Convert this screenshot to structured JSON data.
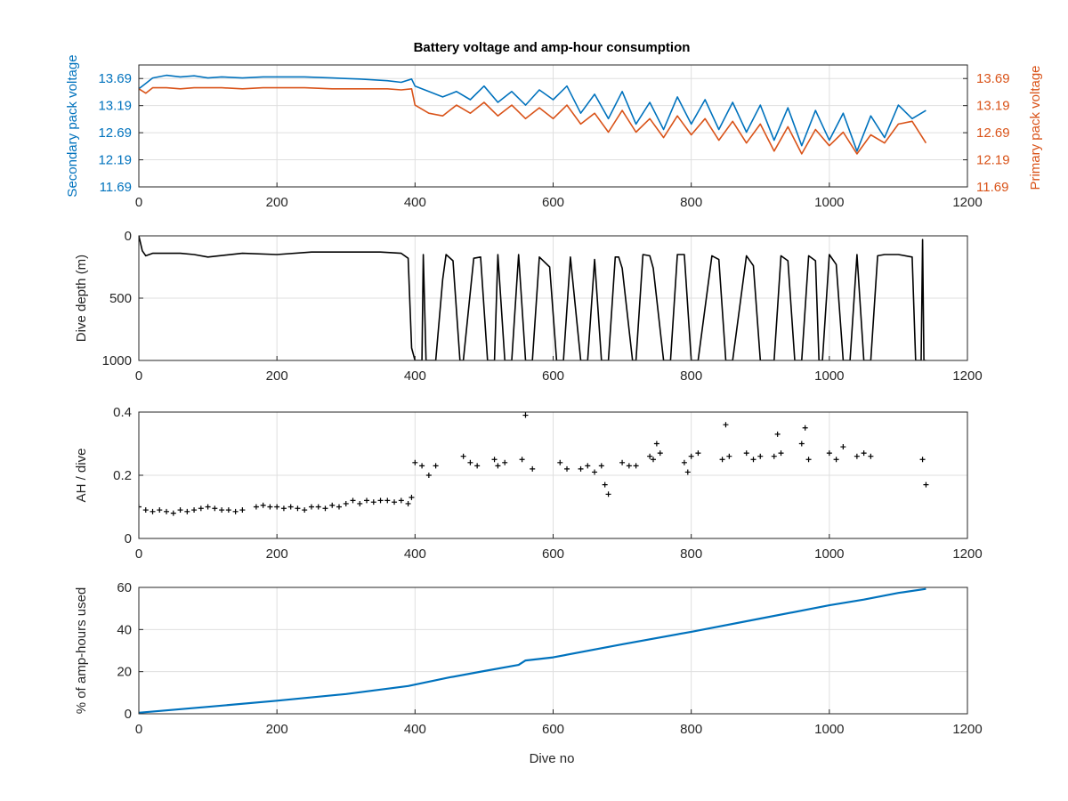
{
  "figure": {
    "title": "Battery voltage and amp-hour consumption",
    "xlabel": "Dive no",
    "colors": {
      "secondary": "#0072bd",
      "primary": "#d95319",
      "black": "#000000"
    }
  },
  "chart_data": [
    {
      "type": "line",
      "title": "Battery voltage and amp-hour consumption",
      "xlabel": "",
      "ylabel_left": "Secondary pack voltage",
      "ylabel_right": "Primary pack voltage",
      "xlim": [
        0,
        1200
      ],
      "ylim": [
        11.69,
        13.94
      ],
      "xticks": [
        0,
        200,
        400,
        600,
        800,
        1000,
        1200
      ],
      "yticks": [
        11.69,
        12.19,
        12.69,
        13.19,
        13.69
      ],
      "grid": true,
      "series": [
        {
          "name": "Secondary pack voltage",
          "axis": "left",
          "color": "#0072bd",
          "x": [
            0,
            10,
            20,
            40,
            60,
            80,
            100,
            120,
            150,
            180,
            200,
            240,
            280,
            320,
            360,
            380,
            395,
            400,
            420,
            440,
            460,
            480,
            500,
            520,
            540,
            560,
            580,
            600,
            620,
            640,
            660,
            680,
            700,
            720,
            740,
            760,
            780,
            800,
            820,
            840,
            860,
            880,
            900,
            920,
            940,
            960,
            980,
            1000,
            1020,
            1040,
            1060,
            1080,
            1100,
            1120,
            1140
          ],
          "y": [
            13.5,
            13.6,
            13.7,
            13.75,
            13.72,
            13.74,
            13.7,
            13.72,
            13.7,
            13.72,
            13.72,
            13.72,
            13.7,
            13.68,
            13.65,
            13.62,
            13.68,
            13.55,
            13.45,
            13.35,
            13.45,
            13.3,
            13.55,
            13.25,
            13.45,
            13.2,
            13.48,
            13.3,
            13.55,
            13.05,
            13.4,
            12.95,
            13.45,
            12.85,
            13.25,
            12.75,
            13.35,
            12.85,
            13.3,
            12.75,
            13.25,
            12.7,
            13.2,
            12.55,
            13.15,
            12.45,
            13.1,
            12.55,
            13.05,
            12.35,
            13.0,
            12.6,
            13.2,
            12.95,
            13.1
          ]
        },
        {
          "name": "Primary pack voltage",
          "axis": "right",
          "color": "#d95319",
          "x": [
            0,
            10,
            20,
            40,
            60,
            80,
            100,
            120,
            150,
            180,
            200,
            240,
            280,
            320,
            360,
            380,
            395,
            400,
            420,
            440,
            460,
            480,
            500,
            520,
            540,
            560,
            580,
            600,
            620,
            640,
            660,
            680,
            700,
            720,
            740,
            760,
            780,
            800,
            820,
            840,
            860,
            880,
            900,
            920,
            940,
            960,
            980,
            1000,
            1020,
            1040,
            1060,
            1080,
            1100,
            1120,
            1140
          ],
          "y": [
            13.5,
            13.42,
            13.52,
            13.52,
            13.5,
            13.52,
            13.52,
            13.52,
            13.5,
            13.52,
            13.52,
            13.52,
            13.5,
            13.5,
            13.5,
            13.48,
            13.5,
            13.2,
            13.05,
            13.0,
            13.2,
            13.05,
            13.25,
            13.0,
            13.2,
            12.95,
            13.15,
            12.95,
            13.2,
            12.85,
            13.05,
            12.7,
            13.1,
            12.7,
            12.95,
            12.6,
            13.0,
            12.65,
            12.95,
            12.55,
            12.9,
            12.5,
            12.85,
            12.35,
            12.8,
            12.3,
            12.75,
            12.45,
            12.7,
            12.3,
            12.65,
            12.5,
            12.85,
            12.9,
            12.5
          ]
        }
      ]
    },
    {
      "type": "line",
      "ylabel": "Dive depth (m)",
      "xlim": [
        0,
        1200
      ],
      "ylim": [
        0,
        1000
      ],
      "y_reversed": true,
      "xticks": [
        0,
        200,
        400,
        600,
        800,
        1000,
        1200
      ],
      "yticks": [
        0,
        500,
        1000
      ],
      "grid": true,
      "series": [
        {
          "name": "",
          "color": "#000000",
          "x": [
            0,
            5,
            10,
            20,
            40,
            60,
            80,
            100,
            150,
            200,
            250,
            300,
            350,
            380,
            390,
            395,
            400,
            410,
            412,
            416,
            420,
            430,
            440,
            445,
            455,
            465,
            470,
            485,
            495,
            505,
            515,
            520,
            530,
            540,
            550,
            560,
            565,
            570,
            580,
            595,
            605,
            615,
            625,
            640,
            650,
            660,
            670,
            680,
            690,
            695,
            700,
            715,
            720,
            730,
            740,
            745,
            760,
            770,
            780,
            790,
            800,
            810,
            830,
            840,
            850,
            860,
            880,
            890,
            900,
            920,
            930,
            940,
            950,
            960,
            970,
            980,
            985,
            990,
            1000,
            1010,
            1020,
            1030,
            1040,
            1050,
            1060,
            1070,
            1080,
            1100,
            1120,
            1125,
            1130,
            1133,
            1135,
            1137,
            1140
          ],
          "y": [
            0,
            120,
            160,
            140,
            140,
            140,
            150,
            170,
            140,
            150,
            130,
            130,
            130,
            140,
            180,
            900,
            1000,
            1000,
            150,
            1000,
            1000,
            1000,
            350,
            150,
            200,
            1000,
            1000,
            180,
            170,
            1000,
            1000,
            150,
            1000,
            1000,
            150,
            1000,
            1000,
            1000,
            170,
            250,
            1000,
            1000,
            170,
            1000,
            1000,
            190,
            1000,
            1000,
            170,
            170,
            260,
            1000,
            1000,
            150,
            160,
            260,
            1000,
            1000,
            150,
            150,
            1000,
            1000,
            160,
            190,
            1000,
            1000,
            160,
            240,
            1000,
            1000,
            160,
            200,
            1000,
            1000,
            160,
            200,
            1000,
            1000,
            150,
            230,
            1000,
            1000,
            150,
            1000,
            1000,
            160,
            150,
            150,
            170,
            1000,
            1000,
            1000,
            30,
            1000,
            1000
          ]
        }
      ]
    },
    {
      "type": "scatter",
      "ylabel": "AH / dive",
      "xlim": [
        0,
        1200
      ],
      "ylim": [
        0,
        0.4
      ],
      "xticks": [
        0,
        200,
        400,
        600,
        800,
        1000,
        1200
      ],
      "yticks": [
        0,
        0.2,
        0.4
      ],
      "grid": true,
      "series": [
        {
          "name": "",
          "color": "#000000",
          "x": [
            0,
            10,
            20,
            30,
            40,
            50,
            60,
            70,
            80,
            90,
            100,
            110,
            120,
            130,
            140,
            150,
            170,
            180,
            190,
            200,
            210,
            220,
            230,
            240,
            250,
            260,
            270,
            280,
            290,
            300,
            310,
            320,
            330,
            340,
            350,
            360,
            370,
            380,
            390,
            395,
            400,
            410,
            420,
            430,
            470,
            480,
            490,
            515,
            520,
            530,
            555,
            560,
            570,
            610,
            620,
            640,
            650,
            660,
            670,
            675,
            680,
            700,
            710,
            720,
            740,
            745,
            750,
            755,
            790,
            795,
            800,
            810,
            845,
            850,
            855,
            880,
            890,
            900,
            920,
            925,
            930,
            960,
            965,
            970,
            1000,
            1010,
            1020,
            1040,
            1050,
            1060,
            1135,
            1140
          ],
          "y": [
            0.1,
            0.09,
            0.085,
            0.09,
            0.085,
            0.08,
            0.09,
            0.085,
            0.09,
            0.095,
            0.1,
            0.095,
            0.09,
            0.09,
            0.085,
            0.09,
            0.1,
            0.105,
            0.1,
            0.1,
            0.095,
            0.1,
            0.095,
            0.09,
            0.1,
            0.1,
            0.095,
            0.105,
            0.1,
            0.11,
            0.12,
            0.11,
            0.12,
            0.115,
            0.12,
            0.12,
            0.115,
            0.12,
            0.11,
            0.13,
            0.24,
            0.23,
            0.2,
            0.23,
            0.26,
            0.24,
            0.23,
            0.25,
            0.23,
            0.24,
            0.25,
            0.39,
            0.22,
            0.24,
            0.22,
            0.22,
            0.23,
            0.21,
            0.23,
            0.17,
            0.14,
            0.24,
            0.23,
            0.23,
            0.26,
            0.25,
            0.3,
            0.27,
            0.24,
            0.21,
            0.26,
            0.27,
            0.25,
            0.36,
            0.26,
            0.27,
            0.25,
            0.26,
            0.26,
            0.33,
            0.27,
            0.3,
            0.35,
            0.25,
            0.27,
            0.25,
            0.29,
            0.26,
            0.27,
            0.26,
            0.25,
            0.17
          ]
        }
      ]
    },
    {
      "type": "line",
      "ylabel": "% of amp-hours used",
      "xlabel": "Dive no",
      "xlim": [
        0,
        1200
      ],
      "ylim": [
        0,
        60
      ],
      "xticks": [
        0,
        200,
        400,
        600,
        800,
        1000,
        1200
      ],
      "yticks": [
        0,
        20,
        40,
        60
      ],
      "grid": true,
      "series": [
        {
          "name": "",
          "color": "#0072bd",
          "x": [
            0,
            100,
            200,
            300,
            390,
            450,
            500,
            550,
            560,
            600,
            700,
            800,
            900,
            1000,
            1050,
            1100,
            1140
          ],
          "y": [
            0.5,
            3.3,
            6.2,
            9.4,
            13.2,
            17.3,
            20.3,
            23.2,
            25.3,
            26.8,
            33.0,
            38.9,
            45.2,
            51.5,
            54.2,
            57.4,
            59.3
          ]
        }
      ]
    }
  ]
}
